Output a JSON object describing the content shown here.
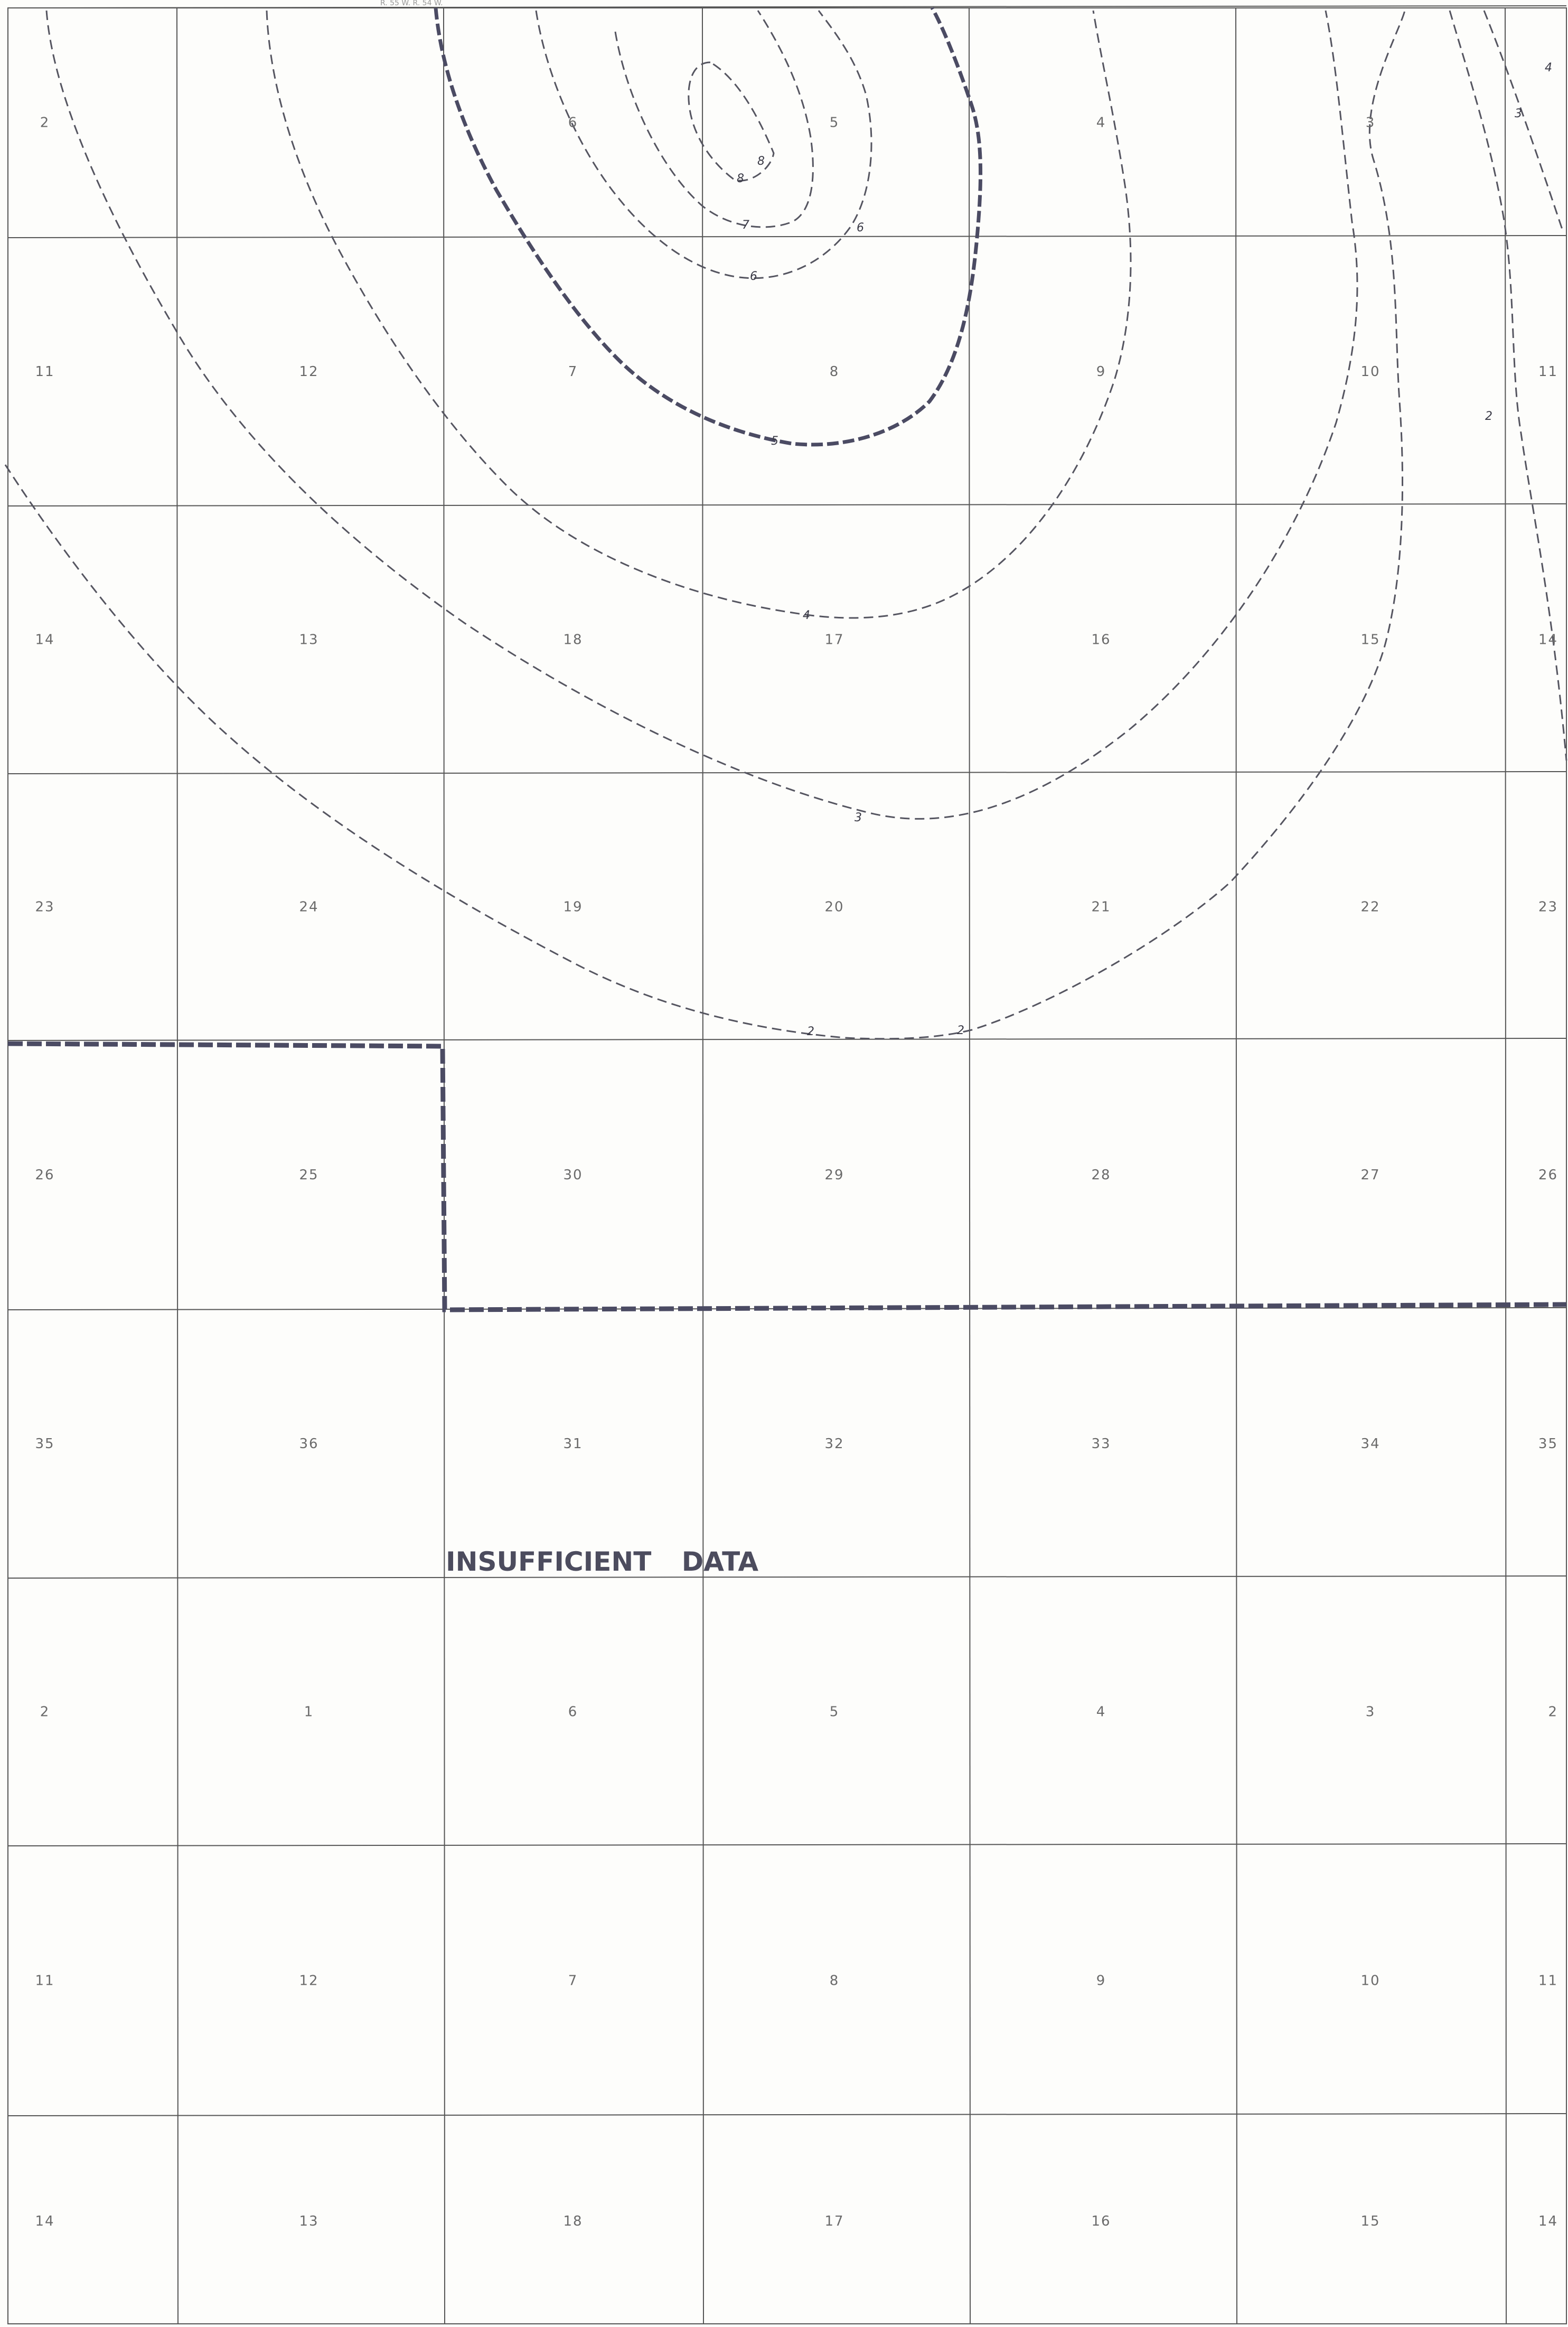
{
  "header_mark": "R. 55 W.   R. 54 W.",
  "insufficient_data_label": "INSUFFICIENT   DATA",
  "colors": {
    "grid": "#555555",
    "contour_thin": "#555560",
    "contour_bold": "#4b4b63",
    "boundary": "#4b4b63",
    "text": "#6a6a6a"
  },
  "sections": [
    [
      "2",
      "",
      "6",
      "5",
      "4",
      "3",
      ""
    ],
    [
      "11",
      "12",
      "7",
      "8",
      "9",
      "10",
      "11"
    ],
    [
      "14",
      "13",
      "18",
      "17",
      "16",
      "15",
      "14"
    ],
    [
      "23",
      "24",
      "19",
      "20",
      "21",
      "22",
      "23"
    ],
    [
      "26",
      "25",
      "30",
      "29",
      "28",
      "27",
      "26"
    ],
    [
      "35",
      "36",
      "31",
      "32",
      "33",
      "34",
      "35"
    ],
    [
      "2",
      "1",
      "6",
      "5",
      "4",
      "3",
      "2"
    ],
    [
      "11",
      "12",
      "7",
      "8",
      "9",
      "10",
      "11"
    ],
    [
      "14",
      "13",
      "18",
      "17",
      "16",
      "15",
      "14"
    ]
  ],
  "contour_labels": [
    "8",
    "8",
    "7",
    "6",
    "6",
    "5",
    "4",
    "3",
    "2",
    "2",
    "2",
    "3",
    "4"
  ]
}
